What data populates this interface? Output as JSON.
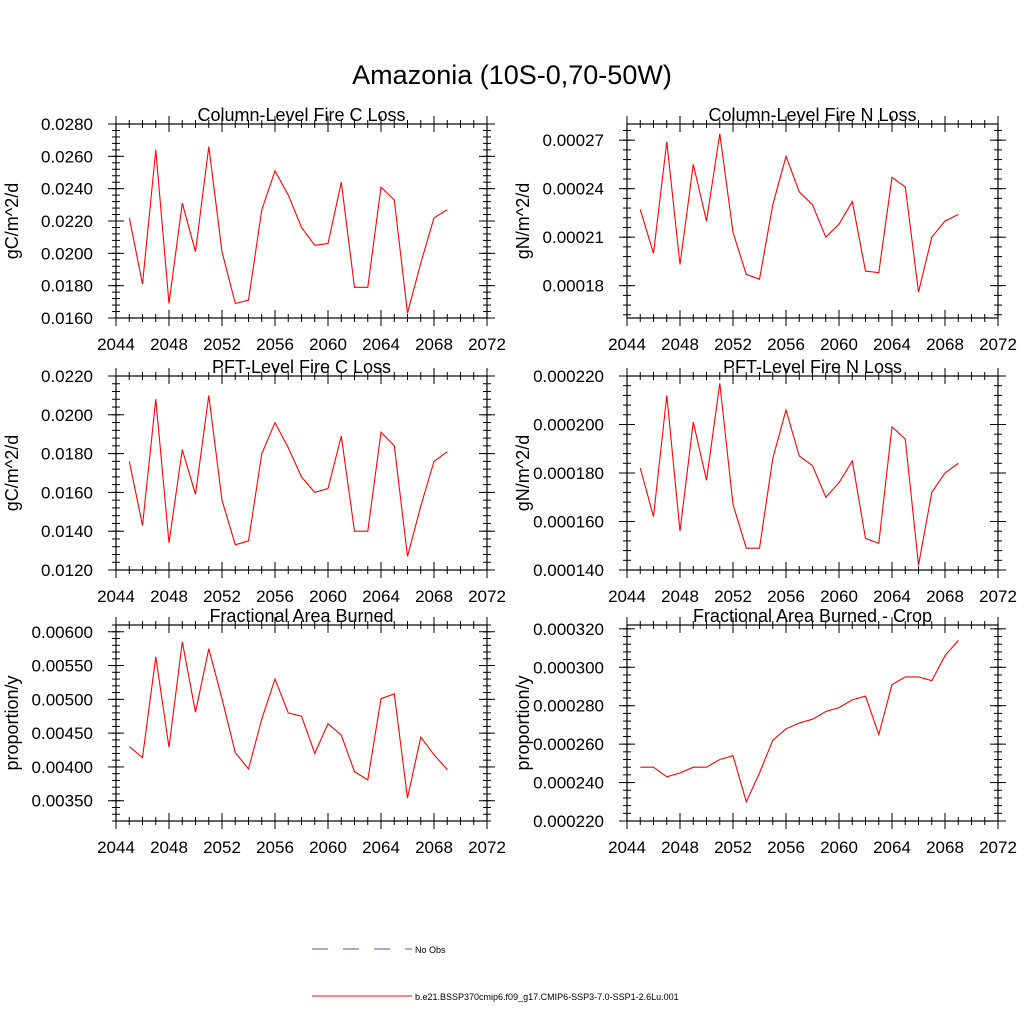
{
  "figure": {
    "title": "Amazonia (10S-0,70-50W)"
  },
  "legend": {
    "items": [
      {
        "label": "No Obs",
        "color": "#4a5aa8",
        "style": "dashed"
      },
      {
        "label": "b.e21.BSSP370cmip6.f09_g17.CMIP6-SSP3-7.0-SSP1-2.6Lu.001",
        "color": "#ff0000",
        "style": "solid"
      }
    ]
  },
  "chart_data": [
    {
      "type": "line",
      "title": "Column-Level Fire C Loss",
      "ylabel": "gC/m^2/d",
      "xlim": [
        2044,
        2072
      ],
      "ylim": [
        0.016,
        0.028
      ],
      "xticks": [
        2044,
        2048,
        2052,
        2056,
        2060,
        2064,
        2068,
        2072
      ],
      "xtick_labels": [
        "2044",
        "2048",
        "2052",
        "2056",
        "2060",
        "2064",
        "2068",
        "2072"
      ],
      "yticks": [
        0.016,
        0.018,
        0.02,
        0.022,
        0.024,
        0.026,
        0.028
      ],
      "ytick_labels": [
        "0.0160",
        "0.0180",
        "0.0200",
        "0.0220",
        "0.0240",
        "0.0260",
        "0.0280"
      ],
      "x": [
        2045,
        2046,
        2047,
        2048,
        2049,
        2050,
        2051,
        2052,
        2053,
        2054,
        2055,
        2056,
        2057,
        2058,
        2059,
        2060,
        2061,
        2062,
        2063,
        2064,
        2065,
        2066,
        2067,
        2068,
        2069
      ],
      "series": [
        {
          "color": "#ff0000",
          "values": [
            0.0222,
            0.0181,
            0.0264,
            0.0169,
            0.0231,
            0.0201,
            0.0266,
            0.0201,
            0.0169,
            0.0171,
            0.0227,
            0.0251,
            0.0236,
            0.0216,
            0.0205,
            0.0206,
            0.0244,
            0.0179,
            0.0179,
            0.0241,
            0.0233,
            0.0163,
            0.0194,
            0.0222,
            0.0227
          ]
        }
      ]
    },
    {
      "type": "line",
      "title": "Column-Level Fire N Loss",
      "ylabel": "gN/m^2/d",
      "xlim": [
        2044,
        2072
      ],
      "ylim": [
        0.00016,
        0.00028
      ],
      "xticks": [
        2044,
        2048,
        2052,
        2056,
        2060,
        2064,
        2068,
        2072
      ],
      "xtick_labels": [
        "2044",
        "2048",
        "2052",
        "2056",
        "2060",
        "2064",
        "2068",
        "2072"
      ],
      "yticks": [
        0.00018,
        0.00021,
        0.00024,
        0.00027
      ],
      "ytick_labels": [
        "0.00018",
        "0.00021",
        "0.00024",
        "0.00027"
      ],
      "x": [
        2045,
        2046,
        2047,
        2048,
        2049,
        2050,
        2051,
        2052,
        2053,
        2054,
        2055,
        2056,
        2057,
        2058,
        2059,
        2060,
        2061,
        2062,
        2063,
        2064,
        2065,
        2066,
        2067,
        2068,
        2069
      ],
      "series": [
        {
          "color": "#ff0000",
          "values": [
            0.000227,
            0.0002,
            0.000269,
            0.000193,
            0.000255,
            0.00022,
            0.000274,
            0.000213,
            0.000187,
            0.000184,
            0.00023,
            0.00026,
            0.000238,
            0.00023,
            0.00021,
            0.000218,
            0.000232,
            0.000189,
            0.000188,
            0.000247,
            0.000241,
            0.000176,
            0.00021,
            0.00022,
            0.000224
          ]
        }
      ]
    },
    {
      "type": "line",
      "title": "PFT-Level Fire C Loss",
      "ylabel": "gC/m^2/d",
      "xlim": [
        2044,
        2072
      ],
      "ylim": [
        0.012,
        0.022
      ],
      "xticks": [
        2044,
        2048,
        2052,
        2056,
        2060,
        2064,
        2068,
        2072
      ],
      "xtick_labels": [
        "2044",
        "2048",
        "2052",
        "2056",
        "2060",
        "2064",
        "2068",
        "2072"
      ],
      "yticks": [
        0.012,
        0.014,
        0.016,
        0.018,
        0.02,
        0.022
      ],
      "ytick_labels": [
        "0.0120",
        "0.0140",
        "0.0160",
        "0.0180",
        "0.0200",
        "0.0220"
      ],
      "x": [
        2045,
        2046,
        2047,
        2048,
        2049,
        2050,
        2051,
        2052,
        2053,
        2054,
        2055,
        2056,
        2057,
        2058,
        2059,
        2060,
        2061,
        2062,
        2063,
        2064,
        2065,
        2066,
        2067,
        2068,
        2069
      ],
      "series": [
        {
          "color": "#ff0000",
          "values": [
            0.0176,
            0.0143,
            0.0208,
            0.0134,
            0.0182,
            0.0159,
            0.021,
            0.0156,
            0.0133,
            0.0135,
            0.018,
            0.0196,
            0.0183,
            0.0168,
            0.016,
            0.0162,
            0.0189,
            0.014,
            0.014,
            0.0191,
            0.0184,
            0.0127,
            0.0153,
            0.0176,
            0.0181
          ]
        }
      ]
    },
    {
      "type": "line",
      "title": "PFT-Level Fire N Loss",
      "ylabel": "gN/m^2/d",
      "xlim": [
        2044,
        2072
      ],
      "ylim": [
        0.00014,
        0.00022
      ],
      "xticks": [
        2044,
        2048,
        2052,
        2056,
        2060,
        2064,
        2068,
        2072
      ],
      "xtick_labels": [
        "2044",
        "2048",
        "2052",
        "2056",
        "2060",
        "2064",
        "2068",
        "2072"
      ],
      "yticks": [
        0.00014,
        0.00016,
        0.00018,
        0.0002,
        0.00022
      ],
      "ytick_labels": [
        "0.000140",
        "0.000160",
        "0.000180",
        "0.000200",
        "0.000220"
      ],
      "x": [
        2045,
        2046,
        2047,
        2048,
        2049,
        2050,
        2051,
        2052,
        2053,
        2054,
        2055,
        2056,
        2057,
        2058,
        2059,
        2060,
        2061,
        2062,
        2063,
        2064,
        2065,
        2066,
        2067,
        2068,
        2069
      ],
      "series": [
        {
          "color": "#ff0000",
          "values": [
            0.000182,
            0.000162,
            0.000212,
            0.000156,
            0.000201,
            0.000177,
            0.000217,
            0.000167,
            0.000149,
            0.000149,
            0.000186,
            0.000206,
            0.000187,
            0.000183,
            0.00017,
            0.000176,
            0.000185,
            0.000153,
            0.000151,
            0.000199,
            0.000194,
            0.000142,
            0.000172,
            0.00018,
            0.000184
          ]
        }
      ]
    },
    {
      "type": "line",
      "title": "Fractional Area Burned",
      "ylabel": "proportion/y",
      "xlim": [
        2044,
        2072
      ],
      "ylim": [
        0.0032,
        0.0061
      ],
      "xticks": [
        2044,
        2048,
        2052,
        2056,
        2060,
        2064,
        2068,
        2072
      ],
      "xtick_labels": [
        "2044",
        "2048",
        "2052",
        "2056",
        "2060",
        "2064",
        "2068",
        "2072"
      ],
      "yticks": [
        0.0035,
        0.004,
        0.0045,
        0.005,
        0.0055,
        0.006
      ],
      "ytick_labels": [
        "0.00350",
        "0.00400",
        "0.00450",
        "0.00500",
        "0.00550",
        "0.00600"
      ],
      "x": [
        2045,
        2046,
        2047,
        2048,
        2049,
        2050,
        2051,
        2052,
        2053,
        2054,
        2055,
        2056,
        2057,
        2058,
        2059,
        2060,
        2061,
        2062,
        2063,
        2064,
        2065,
        2066,
        2067,
        2068,
        2069
      ],
      "series": [
        {
          "color": "#ff0000",
          "values": [
            0.0043,
            0.00414,
            0.00563,
            0.00429,
            0.00585,
            0.00481,
            0.00575,
            0.00501,
            0.00421,
            0.00397,
            0.00471,
            0.0053,
            0.0048,
            0.00475,
            0.0042,
            0.00464,
            0.00447,
            0.00393,
            0.00381,
            0.00501,
            0.00508,
            0.00354,
            0.00444,
            0.00418,
            0.00396
          ]
        }
      ]
    },
    {
      "type": "line",
      "title": "Fractional Area Burned - Crop",
      "ylabel": "proportion/y",
      "xlim": [
        2044,
        2072
      ],
      "ylim": [
        0.00022,
        0.000322
      ],
      "xticks": [
        2044,
        2048,
        2052,
        2056,
        2060,
        2064,
        2068,
        2072
      ],
      "xtick_labels": [
        "2044",
        "2048",
        "2052",
        "2056",
        "2060",
        "2064",
        "2068",
        "2072"
      ],
      "yticks": [
        0.00022,
        0.00024,
        0.00026,
        0.00028,
        0.0003,
        0.00032
      ],
      "ytick_labels": [
        "0.000220",
        "0.000240",
        "0.000260",
        "0.000280",
        "0.000300",
        "0.000320"
      ],
      "x": [
        2045,
        2046,
        2047,
        2048,
        2049,
        2050,
        2051,
        2052,
        2053,
        2054,
        2055,
        2056,
        2057,
        2058,
        2059,
        2060,
        2061,
        2062,
        2063,
        2064,
        2065,
        2066,
        2067,
        2068,
        2069
      ],
      "series": [
        {
          "color": "#ff0000",
          "values": [
            0.000248,
            0.000248,
            0.000243,
            0.000245,
            0.000248,
            0.000248,
            0.000252,
            0.000254,
            0.00023,
            0.000245,
            0.000262,
            0.000268,
            0.000271,
            0.000273,
            0.000277,
            0.000279,
            0.000283,
            0.000285,
            0.000265,
            0.000291,
            0.000295,
            0.000295,
            0.000293,
            0.000306,
            0.000314
          ]
        }
      ]
    }
  ]
}
